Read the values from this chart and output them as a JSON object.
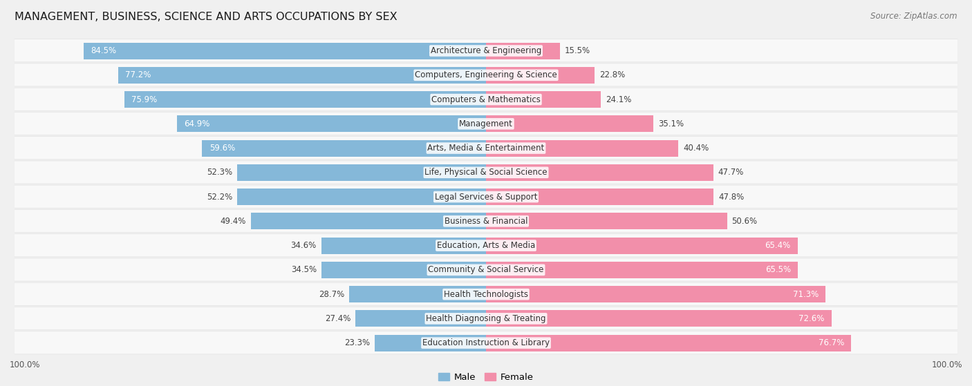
{
  "title": "MANAGEMENT, BUSINESS, SCIENCE AND ARTS OCCUPATIONS BY SEX",
  "source": "Source: ZipAtlas.com",
  "categories": [
    "Architecture & Engineering",
    "Computers, Engineering & Science",
    "Computers & Mathematics",
    "Management",
    "Arts, Media & Entertainment",
    "Life, Physical & Social Science",
    "Legal Services & Support",
    "Business & Financial",
    "Education, Arts & Media",
    "Community & Social Service",
    "Health Technologists",
    "Health Diagnosing & Treating",
    "Education Instruction & Library"
  ],
  "male_pct": [
    84.5,
    77.2,
    75.9,
    64.9,
    59.6,
    52.3,
    52.2,
    49.4,
    34.6,
    34.5,
    28.7,
    27.4,
    23.3
  ],
  "female_pct": [
    15.5,
    22.8,
    24.1,
    35.1,
    40.4,
    47.7,
    47.8,
    50.6,
    65.4,
    65.5,
    71.3,
    72.6,
    76.7
  ],
  "male_color": "#85b8d9",
  "female_color": "#f28faa",
  "bg_color": "#f0f0f0",
  "row_bg_light": "#f8f8f8",
  "row_border": "#d8d8d8",
  "title_fontsize": 11.5,
  "label_fontsize": 8.5,
  "pct_fontsize": 8.5,
  "legend_fontsize": 9.5,
  "source_fontsize": 8.5
}
